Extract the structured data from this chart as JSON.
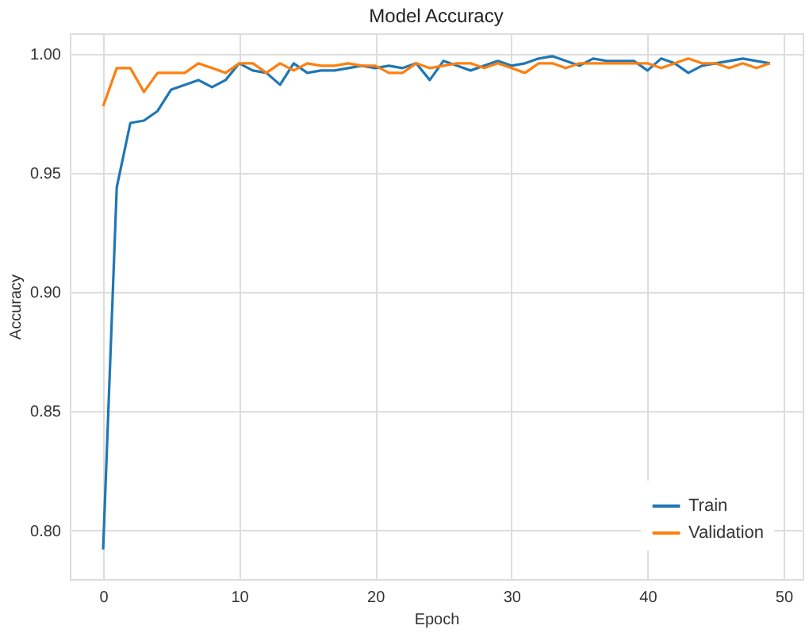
{
  "chart_data": {
    "type": "line",
    "title": "Model Accuracy",
    "xlabel": "Epoch",
    "ylabel": "Accuracy",
    "x": [
      0,
      1,
      2,
      3,
      4,
      5,
      6,
      7,
      8,
      9,
      10,
      11,
      12,
      13,
      14,
      15,
      16,
      17,
      18,
      19,
      20,
      21,
      22,
      23,
      24,
      25,
      26,
      27,
      28,
      29,
      30,
      31,
      32,
      33,
      34,
      35,
      36,
      37,
      38,
      39,
      40,
      41,
      42,
      43,
      44,
      45,
      46,
      47,
      48,
      49
    ],
    "series": [
      {
        "name": "Train",
        "color": "#1f77b4",
        "values": [
          0.792,
          0.944,
          0.971,
          0.972,
          0.976,
          0.985,
          0.987,
          0.989,
          0.986,
          0.989,
          0.996,
          0.993,
          0.992,
          0.987,
          0.996,
          0.992,
          0.993,
          0.993,
          0.994,
          0.995,
          0.994,
          0.995,
          0.994,
          0.996,
          0.989,
          0.997,
          0.995,
          0.993,
          0.995,
          0.997,
          0.995,
          0.996,
          0.998,
          0.999,
          0.997,
          0.995,
          0.998,
          0.997,
          0.997,
          0.997,
          0.993,
          0.998,
          0.996,
          0.992,
          0.995,
          0.996,
          0.997,
          0.998,
          0.997,
          0.996
        ]
      },
      {
        "name": "Validation",
        "color": "#ff7f0e",
        "values": [
          0.978,
          0.994,
          0.994,
          0.984,
          0.992,
          0.992,
          0.992,
          0.996,
          0.994,
          0.992,
          0.996,
          0.996,
          0.992,
          0.996,
          0.993,
          0.996,
          0.995,
          0.995,
          0.996,
          0.995,
          0.995,
          0.992,
          0.992,
          0.996,
          0.994,
          0.995,
          0.996,
          0.996,
          0.994,
          0.996,
          0.994,
          0.992,
          0.996,
          0.996,
          0.994,
          0.996,
          0.996,
          0.996,
          0.996,
          0.996,
          0.996,
          0.994,
          0.996,
          0.998,
          0.996,
          0.996,
          0.994,
          0.996,
          0.994,
          0.996
        ]
      }
    ],
    "xlim": [
      -2.45,
      51.4
    ],
    "xticks": [
      0,
      10,
      20,
      30,
      40,
      50
    ],
    "ylim": [
      0.7796,
      1.0086
    ],
    "yticks": [
      {
        "value": 0.8,
        "label": "0.80"
      },
      {
        "value": 0.85,
        "label": "0.85"
      },
      {
        "value": 0.9,
        "label": "0.90"
      },
      {
        "value": 0.95,
        "label": "0.95"
      },
      {
        "value": 1.0,
        "label": "1.00"
      }
    ],
    "grid": true,
    "legend": "bottom right",
    "marker": "none",
    "line_style": "solid"
  }
}
